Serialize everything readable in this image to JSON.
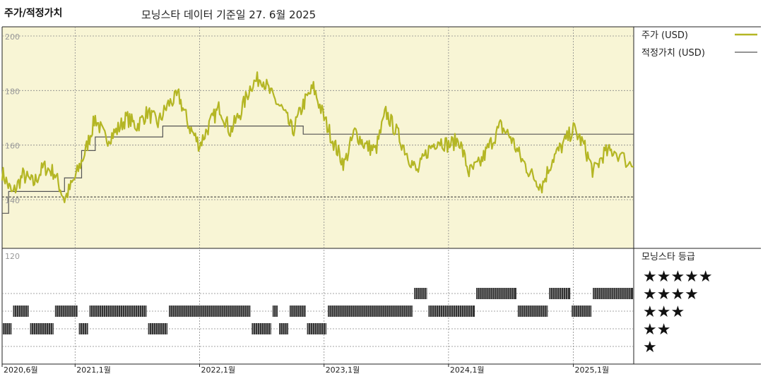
{
  "header": {
    "title": "주가/적정가치",
    "subtitle": "모닝스타 데이터 기준일 27. 6월 2025"
  },
  "legend": {
    "price_label": "주가 (USD)",
    "fair_value_label": "적정가치 (USD)",
    "rating_title": "모닝스타 등급"
  },
  "colors": {
    "price": "#b4b624",
    "fair_value": "#555555",
    "background": "#f8f5d5",
    "rating_bar": "#333333"
  },
  "rating_labels": [
    "★★★★★",
    "★★★★",
    "★★★",
    "★★",
    "★"
  ],
  "chart_data": {
    "type": "line",
    "x_range": [
      "2020-06-01",
      "2025-06-27"
    ],
    "ylim": [
      135,
      202
    ],
    "y_ticks": [
      200,
      180,
      160,
      140
    ],
    "y_ticks_lower": [
      "120"
    ],
    "x_ticks": [
      {
        "date": "2020-06-01",
        "label": "2020,6월"
      },
      {
        "date": "2021-01-01",
        "label": "2021,1월"
      },
      {
        "date": "2022-01-01",
        "label": "2022,1월"
      },
      {
        "date": "2023-01-01",
        "label": "2023,1월"
      },
      {
        "date": "2024-01-01",
        "label": "2024,1월"
      },
      {
        "date": "2025-01-01",
        "label": "2025,1월"
      }
    ],
    "series": [
      {
        "name": "주가 (USD)",
        "points": [
          [
            "2020-06-01",
            150
          ],
          [
            "2020-07-01",
            142
          ],
          [
            "2020-08-01",
            149
          ],
          [
            "2020-09-01",
            146
          ],
          [
            "2020-10-01",
            152
          ],
          [
            "2020-11-01",
            150
          ],
          [
            "2020-12-01",
            140
          ],
          [
            "2021-01-01",
            148
          ],
          [
            "2021-02-01",
            158
          ],
          [
            "2021-03-01",
            170
          ],
          [
            "2021-04-01",
            162
          ],
          [
            "2021-05-01",
            165
          ],
          [
            "2021-06-01",
            170
          ],
          [
            "2021-07-01",
            167
          ],
          [
            "2021-08-01",
            172
          ],
          [
            "2021-09-01",
            168
          ],
          [
            "2021-10-01",
            175
          ],
          [
            "2021-11-01",
            178
          ],
          [
            "2021-12-01",
            167
          ],
          [
            "2022-01-01",
            160
          ],
          [
            "2022-02-01",
            168
          ],
          [
            "2022-03-01",
            174
          ],
          [
            "2022-04-01",
            165
          ],
          [
            "2022-05-01",
            172
          ],
          [
            "2022-06-01",
            182
          ],
          [
            "2022-07-01",
            185
          ],
          [
            "2022-08-01",
            178
          ],
          [
            "2022-09-01",
            173
          ],
          [
            "2022-10-01",
            165
          ],
          [
            "2022-11-01",
            175
          ],
          [
            "2022-12-01",
            181
          ],
          [
            "2023-01-01",
            170
          ],
          [
            "2023-02-01",
            160
          ],
          [
            "2023-03-01",
            153
          ],
          [
            "2023-04-01",
            165
          ],
          [
            "2023-05-01",
            160
          ],
          [
            "2023-06-01",
            158
          ],
          [
            "2023-07-01",
            172
          ],
          [
            "2023-08-01",
            165
          ],
          [
            "2023-09-01",
            157
          ],
          [
            "2023-10-01",
            150
          ],
          [
            "2023-11-01",
            158
          ],
          [
            "2023-12-01",
            162
          ],
          [
            "2024-01-01",
            160
          ],
          [
            "2024-02-01",
            162
          ],
          [
            "2024-03-01",
            150
          ],
          [
            "2024-04-01",
            153
          ],
          [
            "2024-05-01",
            160
          ],
          [
            "2024-06-01",
            167
          ],
          [
            "2024-07-01",
            163
          ],
          [
            "2024-08-01",
            155
          ],
          [
            "2024-09-01",
            149
          ],
          [
            "2024-10-01",
            145
          ],
          [
            "2024-11-01",
            155
          ],
          [
            "2024-12-01",
            160
          ],
          [
            "2025-01-01",
            166
          ],
          [
            "2025-02-01",
            160
          ],
          [
            "2025-03-01",
            150
          ],
          [
            "2025-04-01",
            157
          ],
          [
            "2025-05-01",
            158
          ],
          [
            "2025-06-27",
            152
          ]
        ]
      },
      {
        "name": "적정가치 (USD)",
        "points": [
          [
            "2020-06-01",
            135
          ],
          [
            "2020-06-20",
            135
          ],
          [
            "2020-06-20",
            143
          ],
          [
            "2020-12-01",
            143
          ],
          [
            "2020-12-01",
            148
          ],
          [
            "2021-01-20",
            148
          ],
          [
            "2021-01-20",
            158
          ],
          [
            "2021-03-01",
            158
          ],
          [
            "2021-03-01",
            163
          ],
          [
            "2021-09-15",
            163
          ],
          [
            "2021-09-15",
            167
          ],
          [
            "2022-11-01",
            167
          ],
          [
            "2022-11-01",
            164
          ],
          [
            "2025-06-27",
            164
          ]
        ]
      }
    ],
    "reference_line": 141,
    "ratings": [
      {
        "start": "2020-06-01",
        "end": "2020-07-01",
        "stars": 2
      },
      {
        "start": "2020-07-01",
        "end": "2020-08-20",
        "stars": 3
      },
      {
        "start": "2020-08-20",
        "end": "2020-11-01",
        "stars": 2
      },
      {
        "start": "2020-11-01",
        "end": "2021-01-10",
        "stars": 3
      },
      {
        "start": "2021-01-10",
        "end": "2021-02-10",
        "stars": 2
      },
      {
        "start": "2021-02-10",
        "end": "2021-08-01",
        "stars": 3
      },
      {
        "start": "2021-08-01",
        "end": "2021-10-01",
        "stars": 2
      },
      {
        "start": "2021-10-01",
        "end": "2022-06-01",
        "stars": 3
      },
      {
        "start": "2022-06-01",
        "end": "2022-08-01",
        "stars": 2
      },
      {
        "start": "2022-08-01",
        "end": "2022-08-20",
        "stars": 3
      },
      {
        "start": "2022-08-20",
        "end": "2022-09-20",
        "stars": 2
      },
      {
        "start": "2022-09-20",
        "end": "2022-11-10",
        "stars": 3
      },
      {
        "start": "2022-11-10",
        "end": "2023-01-10",
        "stars": 2
      },
      {
        "start": "2023-01-10",
        "end": "2023-09-20",
        "stars": 3
      },
      {
        "start": "2023-09-20",
        "end": "2023-11-01",
        "stars": 4
      },
      {
        "start": "2023-11-01",
        "end": "2024-03-20",
        "stars": 3
      },
      {
        "start": "2024-03-20",
        "end": "2024-07-20",
        "stars": 4
      },
      {
        "start": "2024-07-20",
        "end": "2024-10-20",
        "stars": 3
      },
      {
        "start": "2024-10-20",
        "end": "2024-12-25",
        "stars": 4
      },
      {
        "start": "2024-12-25",
        "end": "2025-02-25",
        "stars": 3
      },
      {
        "start": "2025-02-25",
        "end": "2025-06-27",
        "stars": 4
      }
    ]
  }
}
